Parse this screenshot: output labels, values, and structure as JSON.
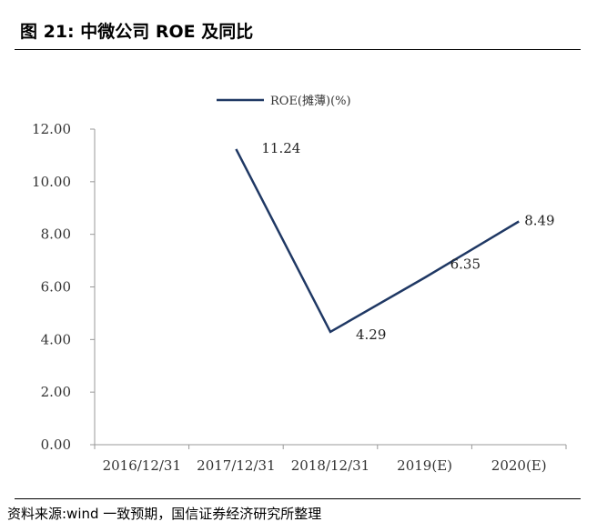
{
  "header": {
    "title": "图  21:  中微公司 ROE 及同比"
  },
  "footer": {
    "source": "资料来源:wind 一致预期，国信证券经济研究所整理"
  },
  "colors": {
    "line": "#1f3864",
    "axis": "#999999"
  },
  "chart_data": {
    "type": "line",
    "categories": [
      "2016/12/31",
      "2017/12/31",
      "2018/12/31",
      "2019(E)",
      "2020(E)"
    ],
    "series": [
      {
        "name": "ROE(摊薄)(%)",
        "values": [
          null,
          11.24,
          4.29,
          6.35,
          8.49
        ]
      }
    ],
    "data_labels": [
      "",
      "11.24",
      "4.29",
      "6.35",
      "8.49"
    ],
    "yticks": [
      "0.00",
      "2.00",
      "4.00",
      "6.00",
      "8.00",
      "10.00",
      "12.00"
    ],
    "ylim": [
      0,
      12
    ],
    "legend_position": "top-center",
    "grid": false
  }
}
